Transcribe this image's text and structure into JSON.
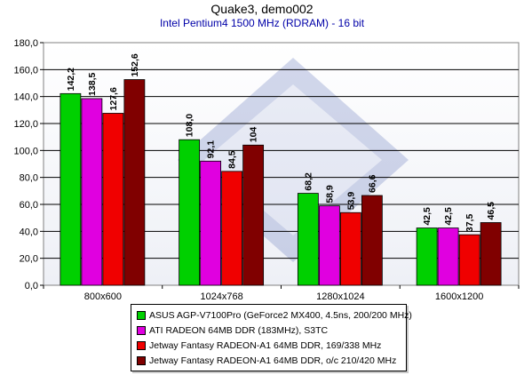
{
  "chart_data": {
    "type": "bar",
    "title": "Quake3, demo002",
    "subtitle": "Intel Pentium4 1500 MHz (RDRAM) - 16 bit",
    "categories": [
      "800x600",
      "1024x768",
      "1280x1024",
      "1600x1200"
    ],
    "series": [
      {
        "name": "ASUS AGP-V7100Pro (GeForce2 MX400, 4.5ns, 200/200 MHz)",
        "values": [
          142.2,
          108.0,
          68.2,
          42.5
        ],
        "labels": [
          "142,2",
          "108,0",
          "68,2",
          "42,5"
        ],
        "color": "#00d000"
      },
      {
        "name": "ATI RADEON 64MB DDR (183MHz), S3TC",
        "values": [
          138.5,
          92.1,
          58.9,
          42.5
        ],
        "labels": [
          "138,5",
          "92,1",
          "58,9",
          "42,5"
        ],
        "color": "#e000e0"
      },
      {
        "name": "Jetway Fantasy RADEON-A1 64MB DDR, 169/338 MHz",
        "values": [
          127.6,
          84.5,
          53.9,
          37.5
        ],
        "labels": [
          "127,6",
          "84,5",
          "53,9",
          "37,5"
        ],
        "color": "#f00000"
      },
      {
        "name": "Jetway Fantasy RADEON-A1 64MB DDR, o/c 210/420 MHz",
        "values": [
          152.6,
          104,
          66.6,
          46.5
        ],
        "labels": [
          "152,6",
          "104",
          "66,6",
          "46,5"
        ],
        "color": "#800000"
      }
    ],
    "yticks": [
      "0,0",
      "20,0",
      "40,0",
      "60,0",
      "80,0",
      "100,0",
      "120,0",
      "140,0",
      "160,0",
      "180,0"
    ],
    "ylim": [
      0,
      180
    ],
    "xlabel": "",
    "ylabel": "",
    "grid": true,
    "legend_position": "bottom"
  }
}
